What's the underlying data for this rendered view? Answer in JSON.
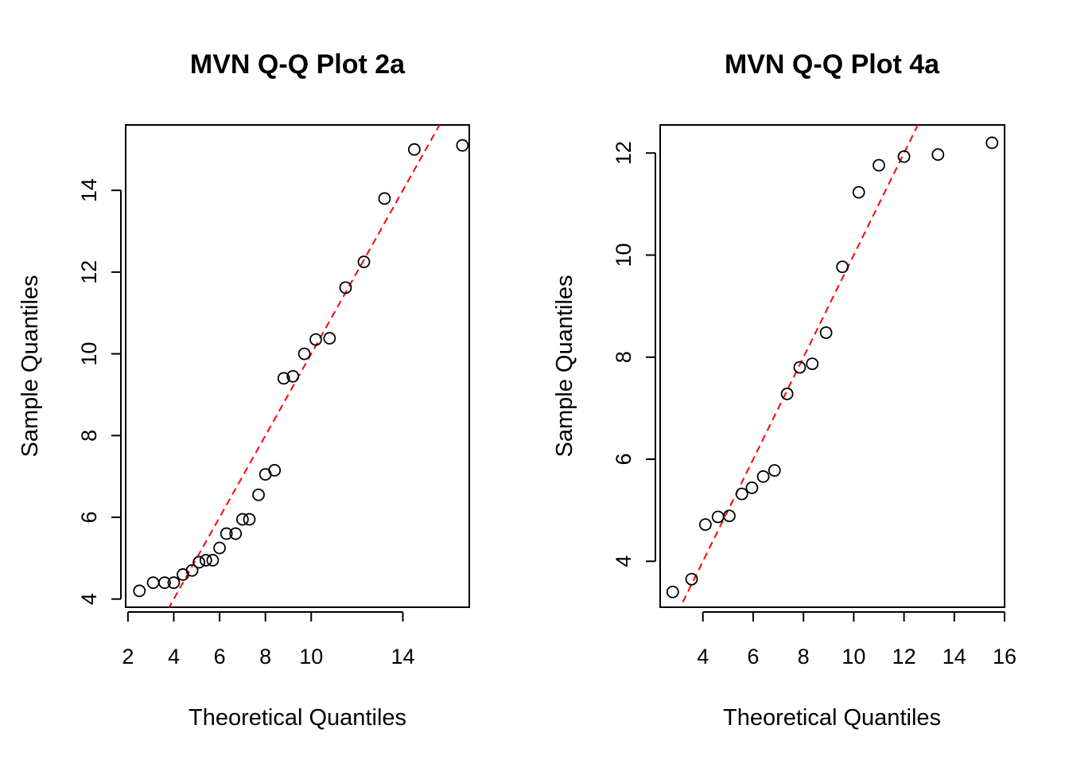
{
  "chart_data": [
    {
      "type": "scatter",
      "title": "MVN Q-Q Plot 2a",
      "xlabel": "Theoretical Quantiles",
      "ylabel": "Sample Quantiles",
      "xlim": [
        1.9,
        16.9
      ],
      "ylim": [
        3.8,
        15.6
      ],
      "x_ticks": [
        2,
        4,
        6,
        8,
        10,
        14
      ],
      "y_ticks": [
        4,
        6,
        8,
        10,
        12,
        14
      ],
      "grid": false,
      "points": {
        "x": [
          2.5,
          3.1,
          3.6,
          4.0,
          4.4,
          4.8,
          5.1,
          5.4,
          5.7,
          6.0,
          6.3,
          6.7,
          7.0,
          7.3,
          7.7,
          8.0,
          8.4,
          8.8,
          9.2,
          9.7,
          10.2,
          10.8,
          11.5,
          12.3,
          13.2,
          14.5,
          16.6
        ],
        "y": [
          4.2,
          4.4,
          4.4,
          4.4,
          4.6,
          4.7,
          4.9,
          4.95,
          4.95,
          5.25,
          5.6,
          5.6,
          5.95,
          5.95,
          6.55,
          7.05,
          7.15,
          9.4,
          9.45,
          10.0,
          10.35,
          10.38,
          11.62,
          12.25,
          13.8,
          15.0,
          15.1
        ]
      },
      "reference_line": {
        "style": "dashed",
        "color": "#ff0000",
        "points": [
          [
            3.5,
            3.5
          ],
          [
            17.0,
            17.0
          ]
        ]
      }
    },
    {
      "type": "scatter",
      "title": "MVN Q-Q Plot 4a",
      "xlabel": "Theoretical Quantiles",
      "ylabel": "Sample Quantiles",
      "xlim": [
        2.3,
        16.0
      ],
      "ylim": [
        3.1,
        12.55
      ],
      "x_ticks": [
        4,
        6,
        8,
        10,
        12,
        14,
        16
      ],
      "y_ticks": [
        4,
        6,
        8,
        10,
        12
      ],
      "grid": false,
      "points": {
        "x": [
          2.8,
          3.55,
          4.1,
          4.6,
          5.05,
          5.55,
          5.95,
          6.4,
          6.85,
          7.35,
          7.85,
          8.35,
          8.9,
          9.55,
          10.2,
          11.0,
          12.0,
          13.35,
          15.5
        ],
        "y": [
          3.4,
          3.65,
          4.72,
          4.87,
          4.89,
          5.32,
          5.44,
          5.66,
          5.78,
          7.28,
          7.8,
          7.87,
          8.48,
          9.77,
          11.23,
          11.76,
          11.93,
          11.97,
          12.2
        ]
      },
      "reference_line": {
        "style": "dashed",
        "color": "#ff0000",
        "points": [
          [
            3.2,
            3.2
          ],
          [
            12.6,
            12.6
          ]
        ]
      }
    }
  ]
}
